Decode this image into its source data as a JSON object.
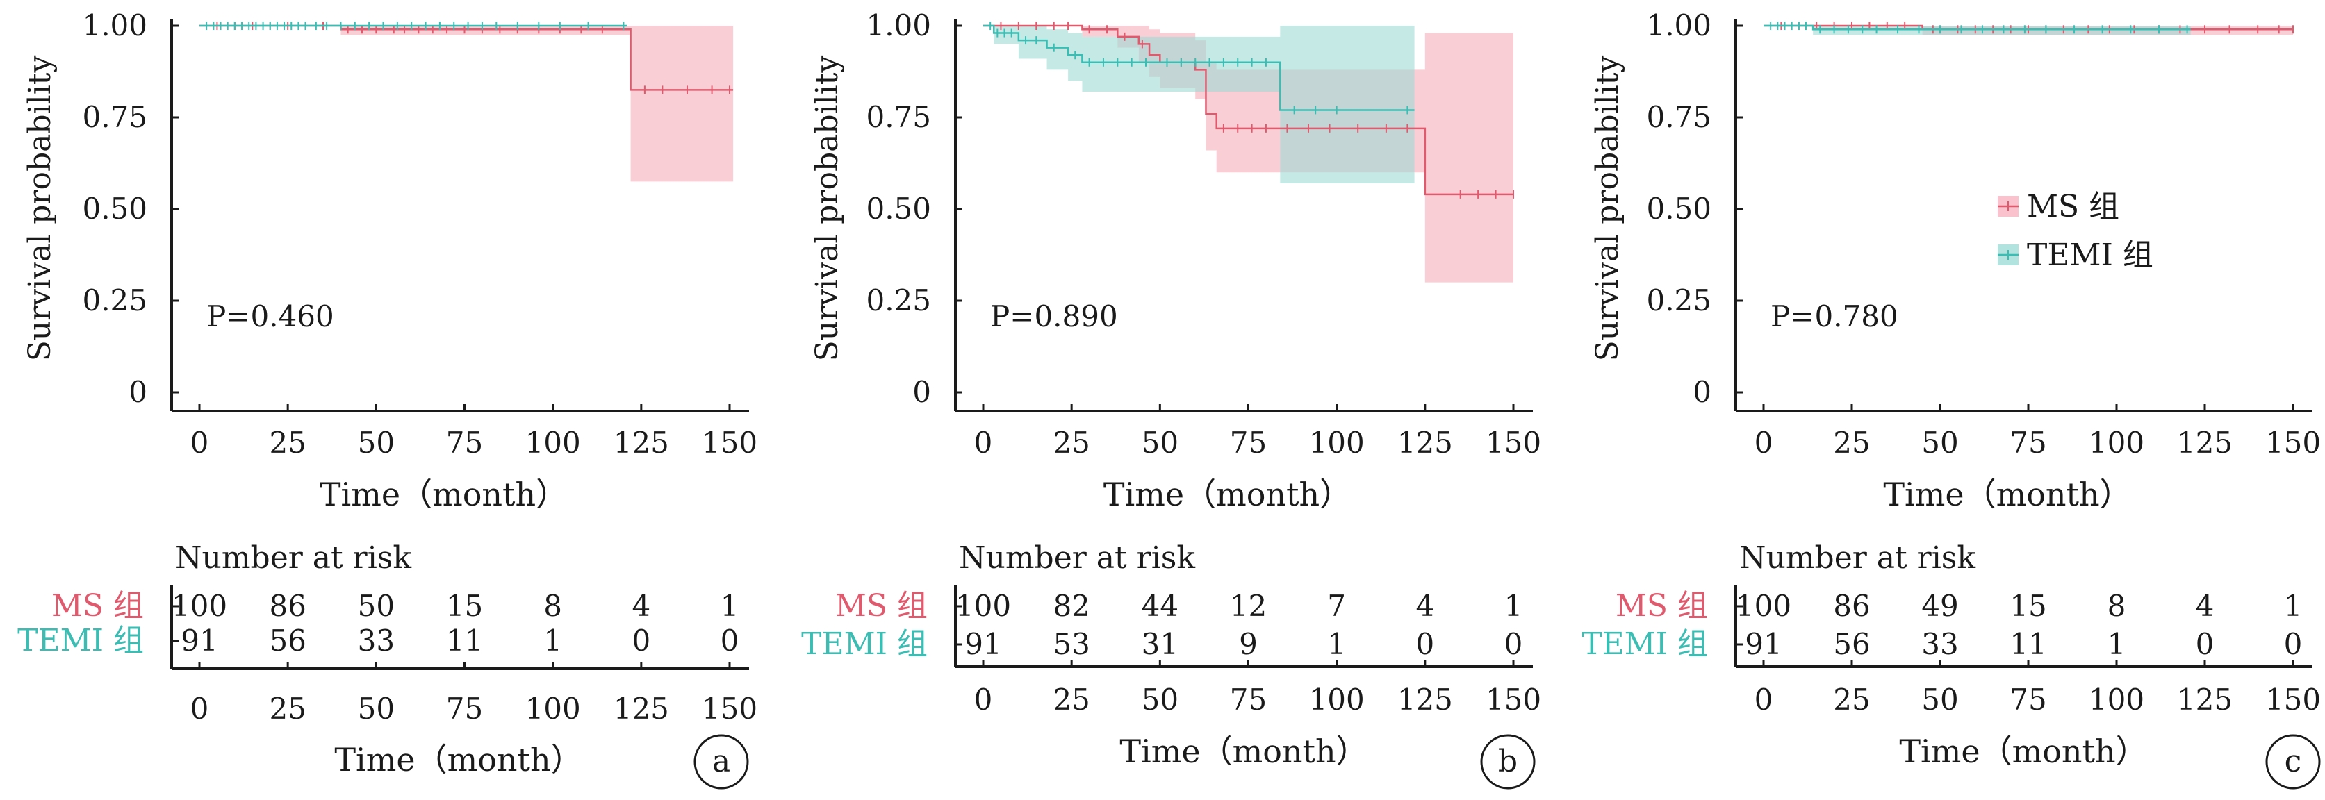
{
  "colors": {
    "ms": "#e05a6e",
    "ms_band": "#f7b3bf",
    "temi": "#3bbdb4",
    "temi_band": "#9fdcd6",
    "axis": "#1a1a1a",
    "text": "#1a1a1a"
  },
  "chart_data": [
    {
      "type": "line",
      "panel_label": "a",
      "ylabel": "Survival probability",
      "xlabel": "Time（month）",
      "xlim": [
        0,
        150
      ],
      "ylim": [
        0,
        1
      ],
      "x_ticks": [
        "0",
        "25",
        "50",
        "75",
        "100",
        "125",
        "150"
      ],
      "y_ticks": [
        "0",
        "0.25",
        "0.50",
        "0.75",
        "1.00"
      ],
      "p_value": "P=0.460",
      "series": [
        {
          "name": "MS 组",
          "step_x": [
            0,
            40,
            122,
            151
          ],
          "step_y": [
            1.0,
            0.99,
            0.825,
            0.825
          ],
          "ci_lower": [
            1.0,
            0.975,
            0.575,
            0.575
          ],
          "ci_upper": [
            1.0,
            1.0,
            1.0,
            1.0
          ],
          "censor_x": [
            5,
            10,
            15,
            20,
            25,
            30,
            35,
            42,
            46,
            50,
            55,
            58,
            62,
            66,
            70,
            75,
            80,
            85,
            90,
            96,
            102,
            108,
            114,
            126,
            131,
            138,
            145,
            150
          ]
        },
        {
          "name": "TEMI 组",
          "step_x": [
            0,
            121
          ],
          "step_y": [
            1.0,
            1.0
          ],
          "ci_lower": [
            1.0,
            1.0
          ],
          "ci_upper": [
            1.0,
            1.0
          ],
          "censor_x": [
            2,
            4,
            6,
            8,
            10,
            12,
            14,
            16,
            18,
            20,
            22,
            24,
            26,
            28,
            30,
            33,
            36,
            40,
            44,
            48,
            52,
            56,
            60,
            64,
            68,
            72,
            76,
            80,
            84,
            90,
            96,
            102,
            110,
            120
          ]
        }
      ],
      "risk_table": {
        "title": "Number at risk",
        "rows": [
          {
            "name": "MS 组",
            "values": [
              "100",
              "86",
              "50",
              "15",
              "8",
              "4",
              "1"
            ]
          },
          {
            "name": "TEMI 组",
            "values": [
              "91",
              "56",
              "33",
              "11",
              "1",
              "0",
              "0"
            ]
          }
        ],
        "x_ticks": [
          "0",
          "25",
          "50",
          "75",
          "100",
          "125",
          "150"
        ],
        "xlabel": "Time（month）"
      }
    },
    {
      "type": "line",
      "panel_label": "b",
      "ylabel": "Survival probability",
      "xlabel": "Time（month）",
      "xlim": [
        0,
        150
      ],
      "ylim": [
        0,
        1
      ],
      "x_ticks": [
        "0",
        "25",
        "50",
        "75",
        "100",
        "125",
        "150"
      ],
      "y_ticks": [
        "0",
        "0.25",
        "0.50",
        "0.75",
        "1.00"
      ],
      "p_value": "P=0.890",
      "series": [
        {
          "name": "MS 组",
          "step_x": [
            0,
            28,
            38,
            44,
            47,
            50,
            60,
            63,
            66,
            125,
            150
          ],
          "step_y": [
            1.0,
            0.99,
            0.97,
            0.95,
            0.92,
            0.9,
            0.88,
            0.76,
            0.72,
            0.54,
            0.54
          ],
          "ci_lower": [
            1.0,
            0.97,
            0.94,
            0.9,
            0.86,
            0.83,
            0.8,
            0.66,
            0.6,
            0.3,
            0.3
          ],
          "ci_upper": [
            1.0,
            1.0,
            1.0,
            1.0,
            0.99,
            0.98,
            0.96,
            0.9,
            0.88,
            0.98,
            0.98
          ],
          "censor_x": [
            5,
            10,
            15,
            20,
            24,
            30,
            35,
            40,
            45,
            52,
            56,
            68,
            72,
            76,
            80,
            86,
            92,
            98,
            106,
            114,
            120,
            135,
            140,
            145,
            150
          ]
        },
        {
          "name": "TEMI 组",
          "step_x": [
            0,
            3,
            10,
            18,
            24,
            28,
            84,
            122
          ],
          "step_y": [
            1.0,
            0.98,
            0.96,
            0.94,
            0.92,
            0.9,
            0.77,
            0.77
          ],
          "ci_lower": [
            1.0,
            0.95,
            0.91,
            0.88,
            0.85,
            0.82,
            0.57,
            0.57
          ],
          "ci_upper": [
            1.0,
            1.0,
            1.0,
            0.99,
            0.98,
            0.97,
            1.0,
            1.0
          ],
          "censor_x": [
            2,
            4,
            6,
            8,
            12,
            15,
            20,
            26,
            30,
            34,
            38,
            42,
            46,
            52,
            56,
            60,
            64,
            68,
            72,
            76,
            80,
            88,
            94,
            100,
            120
          ]
        }
      ],
      "risk_table": {
        "title": "Number at risk",
        "rows": [
          {
            "name": "MS 组",
            "values": [
              "100",
              "82",
              "44",
              "12",
              "7",
              "4",
              "1"
            ]
          },
          {
            "name": "TEMI 组",
            "values": [
              "91",
              "53",
              "31",
              "9",
              "1",
              "0",
              "0"
            ]
          }
        ],
        "x_ticks": [
          "0",
          "25",
          "50",
          "75",
          "100",
          "125",
          "150"
        ],
        "xlabel": "Time（month）"
      }
    },
    {
      "type": "line",
      "panel_label": "c",
      "ylabel": "Survival probability",
      "xlabel": "Time（month）",
      "xlim": [
        0,
        150
      ],
      "ylim": [
        0,
        1
      ],
      "x_ticks": [
        "0",
        "25",
        "50",
        "75",
        "100",
        "125",
        "150"
      ],
      "y_ticks": [
        "0",
        "0.25",
        "0.50",
        "0.75",
        "1.00"
      ],
      "p_value": "P=0.780",
      "legend": [
        "MS 组",
        "TEMI 组"
      ],
      "series": [
        {
          "name": "MS 组",
          "step_x": [
            0,
            45,
            150
          ],
          "step_y": [
            1.0,
            0.99,
            0.99
          ],
          "ci_lower": [
            1.0,
            0.975,
            0.975
          ],
          "ci_upper": [
            1.0,
            1.0,
            1.0
          ],
          "censor_x": [
            5,
            10,
            15,
            20,
            25,
            30,
            35,
            40,
            48,
            55,
            60,
            65,
            70,
            75,
            80,
            85,
            92,
            98,
            105,
            112,
            118,
            125,
            132,
            140,
            146,
            150
          ]
        },
        {
          "name": "TEMI 组",
          "step_x": [
            0,
            14,
            121
          ],
          "step_y": [
            1.0,
            0.99,
            0.99
          ],
          "ci_lower": [
            1.0,
            0.975,
            0.975
          ],
          "ci_upper": [
            1.0,
            1.0,
            1.0
          ],
          "censor_x": [
            2,
            4,
            6,
            8,
            10,
            12,
            16,
            20,
            24,
            28,
            32,
            38,
            44,
            50,
            56,
            62,
            68,
            74,
            80,
            88,
            96,
            104,
            112,
            120
          ]
        }
      ],
      "risk_table": {
        "title": "Number at risk",
        "rows": [
          {
            "name": "MS 组",
            "values": [
              "100",
              "86",
              "49",
              "15",
              "8",
              "4",
              "1"
            ]
          },
          {
            "name": "TEMI 组",
            "values": [
              "91",
              "56",
              "33",
              "11",
              "1",
              "0",
              "0"
            ]
          }
        ],
        "x_ticks": [
          "0",
          "25",
          "50",
          "75",
          "100",
          "125",
          "150"
        ],
        "xlabel": "Time（month）"
      }
    }
  ]
}
